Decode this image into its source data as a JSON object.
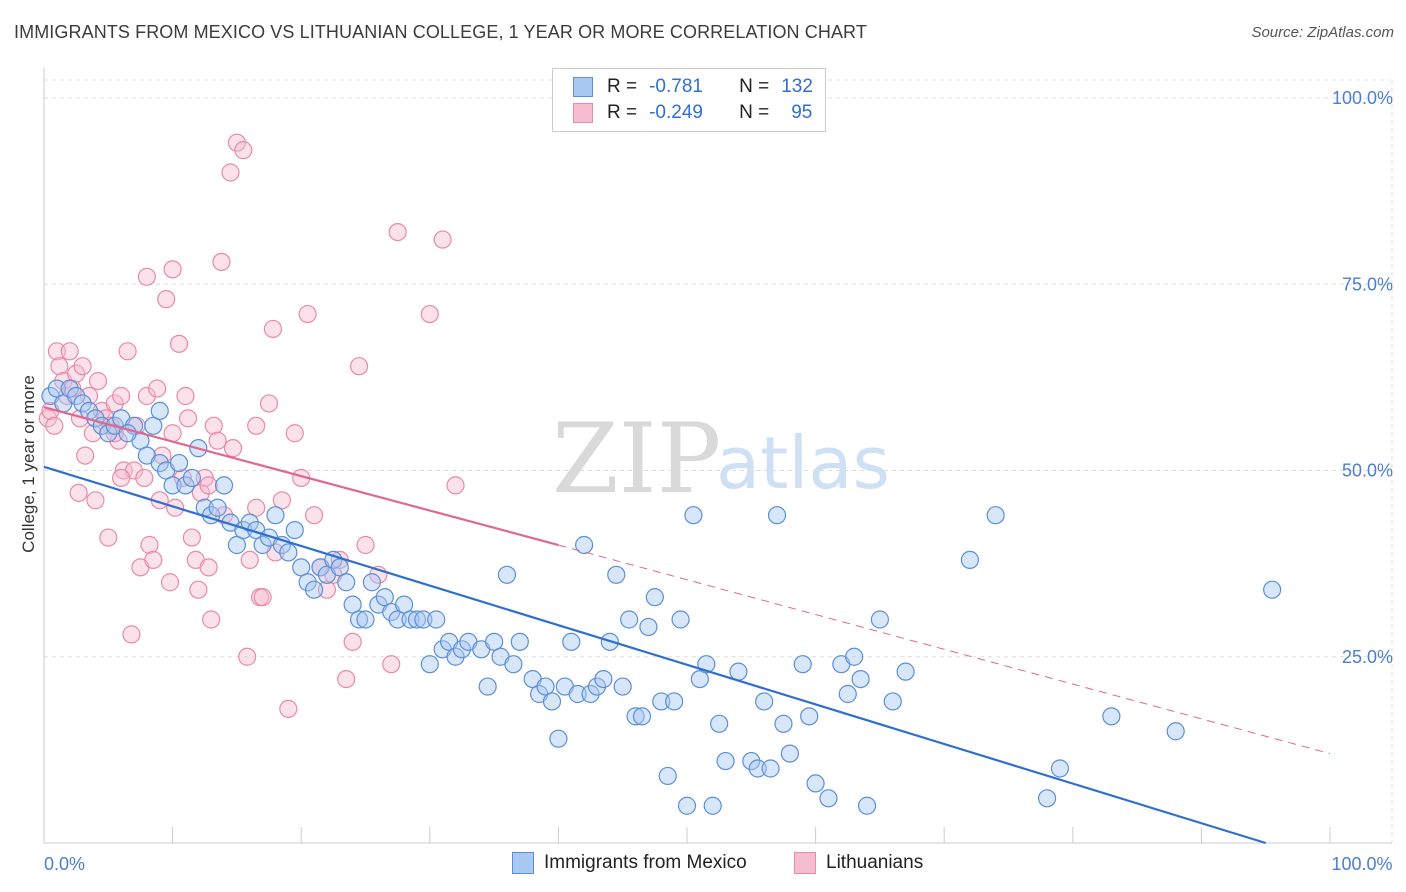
{
  "header": {
    "title": "IMMIGRANTS FROM MEXICO VS LITHUANIAN COLLEGE, 1 YEAR OR MORE CORRELATION CHART",
    "source": "Source: ZipAtlas.com"
  },
  "legend": {
    "rows": [
      {
        "r_label": "R =",
        "r_value": "-0.781",
        "n_label": "N =",
        "n_value": "132"
      },
      {
        "r_label": "R =",
        "r_value": "-0.249",
        "n_label": "N =",
        "n_value": "95"
      }
    ]
  },
  "watermark": {
    "zip": "ZIP",
    "atlas": "atlas"
  },
  "colors": {
    "blue_fill": "#a9c8f2",
    "blue_stroke": "#5b8fd9",
    "blue_line": "#2f6fd0",
    "pink_fill": "#f6bcd0",
    "pink_stroke": "#e88aa9",
    "pink_line": "#e0678f",
    "grid": "#dddddd",
    "tick_text": "#4a7fd1"
  },
  "chart_data": {
    "type": "scatter",
    "title": "IMMIGRANTS FROM MEXICO VS LITHUANIAN COLLEGE, 1 YEAR OR MORE CORRELATION CHART",
    "xlabel": "",
    "ylabel": "College, 1 year or more",
    "xlim": [
      0,
      100
    ],
    "ylim": [
      0,
      100
    ],
    "x_tick_labels": [
      {
        "value": 0,
        "label": "0.0%"
      },
      {
        "value": 100,
        "label": "100.0%"
      }
    ],
    "y_tick_labels": [
      {
        "value": 25,
        "label": "25.0%"
      },
      {
        "value": 50,
        "label": "50.0%"
      },
      {
        "value": 75,
        "label": "75.0%"
      },
      {
        "value": 100,
        "label": "100.0%"
      }
    ],
    "series": [
      {
        "name": "Immigrants from Mexico",
        "color": "#5b8fd9",
        "trend": {
          "x": [
            0,
            95
          ],
          "y": [
            50.5,
            0
          ],
          "dashed_extension": false
        },
        "points": [
          [
            0.5,
            60
          ],
          [
            1,
            61
          ],
          [
            1.5,
            59
          ],
          [
            2,
            61
          ],
          [
            2.5,
            60
          ],
          [
            3,
            59
          ],
          [
            3.5,
            58
          ],
          [
            4,
            57
          ],
          [
            4.5,
            56
          ],
          [
            5,
            55
          ],
          [
            5.5,
            56
          ],
          [
            6,
            57
          ],
          [
            7,
            56
          ],
          [
            7.5,
            54
          ],
          [
            8,
            52
          ],
          [
            8.5,
            56
          ],
          [
            9,
            51
          ],
          [
            9.5,
            50
          ],
          [
            10,
            48
          ],
          [
            10.5,
            51
          ],
          [
            11,
            48
          ],
          [
            11.5,
            49
          ],
          [
            12,
            53
          ],
          [
            12.5,
            45
          ],
          [
            13,
            44
          ],
          [
            13.5,
            45
          ],
          [
            14,
            48
          ],
          [
            14.5,
            43
          ],
          [
            15,
            40
          ],
          [
            15.5,
            42
          ],
          [
            16,
            43
          ],
          [
            16.5,
            42
          ],
          [
            17,
            40
          ],
          [
            17.5,
            41
          ],
          [
            18,
            44
          ],
          [
            18.5,
            40
          ],
          [
            19,
            39
          ],
          [
            19.5,
            42
          ],
          [
            20,
            37
          ],
          [
            20.5,
            35
          ],
          [
            21,
            34
          ],
          [
            21.5,
            37
          ],
          [
            22,
            36
          ],
          [
            22.5,
            38
          ],
          [
            23,
            37
          ],
          [
            23.5,
            35
          ],
          [
            24,
            32
          ],
          [
            24.5,
            30
          ],
          [
            25,
            30
          ],
          [
            25.5,
            35
          ],
          [
            26,
            32
          ],
          [
            26.5,
            33
          ],
          [
            27,
            31
          ],
          [
            27.5,
            30
          ],
          [
            28,
            32
          ],
          [
            28.5,
            30
          ],
          [
            29,
            30
          ],
          [
            29.5,
            30
          ],
          [
            30,
            24
          ],
          [
            30.5,
            30
          ],
          [
            31,
            26
          ],
          [
            31.5,
            27
          ],
          [
            32,
            25
          ],
          [
            32.5,
            26
          ],
          [
            33,
            27
          ],
          [
            34,
            26
          ],
          [
            34.5,
            21
          ],
          [
            35,
            27
          ],
          [
            35.5,
            25
          ],
          [
            36,
            36
          ],
          [
            36.5,
            24
          ],
          [
            37,
            27
          ],
          [
            38,
            22
          ],
          [
            38.5,
            20
          ],
          [
            39,
            21
          ],
          [
            39.5,
            19
          ],
          [
            40,
            14
          ],
          [
            40.5,
            21
          ],
          [
            41,
            27
          ],
          [
            41.5,
            20
          ],
          [
            42,
            40
          ],
          [
            42.5,
            20
          ],
          [
            43,
            21
          ],
          [
            43.5,
            22
          ],
          [
            44,
            27
          ],
          [
            44.5,
            36
          ],
          [
            45,
            21
          ],
          [
            45.5,
            30
          ],
          [
            46,
            17
          ],
          [
            46.5,
            17
          ],
          [
            47,
            29
          ],
          [
            47.5,
            33
          ],
          [
            48,
            19
          ],
          [
            48.5,
            9
          ],
          [
            49,
            19
          ],
          [
            49.5,
            30
          ],
          [
            50,
            5
          ],
          [
            50.5,
            44
          ],
          [
            51,
            22
          ],
          [
            51.5,
            24
          ],
          [
            52,
            5
          ],
          [
            52.5,
            16
          ],
          [
            53,
            11
          ],
          [
            54,
            23
          ],
          [
            55,
            11
          ],
          [
            55.5,
            10
          ],
          [
            56,
            19
          ],
          [
            56.5,
            10
          ],
          [
            57,
            44
          ],
          [
            57.5,
            16
          ],
          [
            58,
            12
          ],
          [
            59,
            24
          ],
          [
            59.5,
            17
          ],
          [
            60,
            8
          ],
          [
            61,
            6
          ],
          [
            62,
            24
          ],
          [
            62.5,
            20
          ],
          [
            63,
            25
          ],
          [
            63.5,
            22
          ],
          [
            64,
            5
          ],
          [
            65,
            30
          ],
          [
            66,
            19
          ],
          [
            67,
            23
          ],
          [
            72,
            38
          ],
          [
            74,
            44
          ],
          [
            78,
            6
          ],
          [
            79,
            10
          ],
          [
            83,
            17
          ],
          [
            88,
            15
          ],
          [
            95.5,
            34
          ],
          [
            6.5,
            55
          ],
          [
            9,
            58
          ]
        ]
      },
      {
        "name": "Lithuanians",
        "color": "#e88aa9",
        "trend": {
          "x": [
            0,
            40
          ],
          "y": [
            58.5,
            40
          ],
          "dashed_to": {
            "x": 100,
            "y": 12
          }
        },
        "points": [
          [
            0.3,
            57
          ],
          [
            0.5,
            58
          ],
          [
            0.8,
            56
          ],
          [
            1,
            66
          ],
          [
            1.2,
            64
          ],
          [
            1.5,
            62
          ],
          [
            1.8,
            60
          ],
          [
            2,
            66
          ],
          [
            2.2,
            61
          ],
          [
            2.5,
            63
          ],
          [
            2.8,
            57
          ],
          [
            3,
            64
          ],
          [
            3.2,
            52
          ],
          [
            3.5,
            60
          ],
          [
            3.8,
            55
          ],
          [
            4,
            46
          ],
          [
            4.2,
            62
          ],
          [
            4.5,
            58
          ],
          [
            4.8,
            57
          ],
          [
            5,
            41
          ],
          [
            5.2,
            56
          ],
          [
            5.5,
            59
          ],
          [
            5.8,
            54
          ],
          [
            6,
            60
          ],
          [
            6.2,
            50
          ],
          [
            6.5,
            66
          ],
          [
            6.8,
            28
          ],
          [
            7,
            50
          ],
          [
            7.2,
            56
          ],
          [
            7.5,
            37
          ],
          [
            7.8,
            49
          ],
          [
            8,
            60
          ],
          [
            8.2,
            40
          ],
          [
            8.5,
            38
          ],
          [
            8.8,
            61
          ],
          [
            9,
            46
          ],
          [
            9.2,
            52
          ],
          [
            9.5,
            73
          ],
          [
            9.8,
            35
          ],
          [
            10,
            55
          ],
          [
            10.2,
            45
          ],
          [
            10.5,
            67
          ],
          [
            10.8,
            49
          ],
          [
            11,
            60
          ],
          [
            11.2,
            57
          ],
          [
            11.5,
            41
          ],
          [
            11.8,
            38
          ],
          [
            12,
            34
          ],
          [
            12.2,
            47
          ],
          [
            12.5,
            49
          ],
          [
            12.8,
            37
          ],
          [
            13,
            30
          ],
          [
            13.2,
            56
          ],
          [
            13.5,
            54
          ],
          [
            13.8,
            78
          ],
          [
            14,
            44
          ],
          [
            14.5,
            90
          ],
          [
            15,
            94
          ],
          [
            15.5,
            93
          ],
          [
            15.8,
            25
          ],
          [
            16,
            38
          ],
          [
            16.5,
            45
          ],
          [
            16.8,
            33
          ],
          [
            17,
            33
          ],
          [
            17.5,
            59
          ],
          [
            17.8,
            69
          ],
          [
            18,
            39
          ],
          [
            18.5,
            46
          ],
          [
            19,
            18
          ],
          [
            19.5,
            55
          ],
          [
            20,
            49
          ],
          [
            20.5,
            71
          ],
          [
            21,
            44
          ],
          [
            21.5,
            37
          ],
          [
            22,
            34
          ],
          [
            22.5,
            36
          ],
          [
            23,
            38
          ],
          [
            23.5,
            22
          ],
          [
            24,
            27
          ],
          [
            24.5,
            64
          ],
          [
            25,
            40
          ],
          [
            26,
            36
          ],
          [
            27,
            24
          ],
          [
            27.5,
            82
          ],
          [
            30,
            71
          ],
          [
            31,
            81
          ],
          [
            32,
            48
          ],
          [
            10,
            77
          ],
          [
            8,
            76
          ],
          [
            2.7,
            47
          ],
          [
            6,
            49
          ],
          [
            12.8,
            48
          ],
          [
            14.7,
            53
          ],
          [
            5.5,
            55
          ],
          [
            16.5,
            56
          ]
        ]
      }
    ]
  },
  "bottom_legend": {
    "items": [
      {
        "label": "Immigrants from Mexico"
      },
      {
        "label": "Lithuanians"
      }
    ]
  }
}
